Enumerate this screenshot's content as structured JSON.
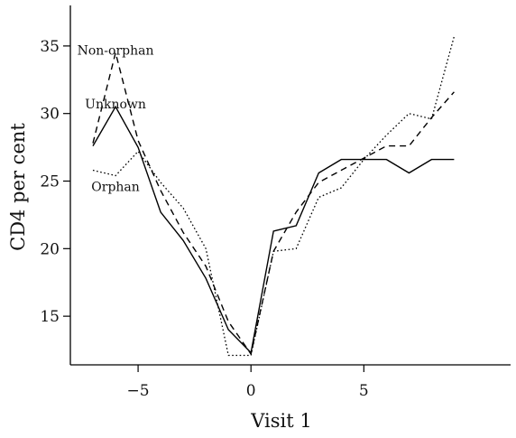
{
  "chart_data": {
    "type": "line",
    "title": "",
    "xlabel": "Visit 1",
    "ylabel": "CD4 per cent",
    "xlim": [
      -8,
      11.5
    ],
    "ylim": [
      11.4,
      38
    ],
    "x_ticks": [
      -5,
      0,
      5
    ],
    "x_tick_labels": [
      "−5",
      "0",
      "5"
    ],
    "y_ticks": [
      15,
      20,
      25,
      30,
      35
    ],
    "y_tick_labels": [
      "15",
      "20",
      "25",
      "30",
      "35"
    ],
    "grid": false,
    "legend": "none",
    "series": [
      {
        "name": "Non-orphan",
        "style": "dashed",
        "label_anchor": [
          -6,
          34.7
        ],
        "x": [
          -7,
          -6,
          -5,
          -4,
          -3,
          -2,
          -1,
          0,
          1,
          2,
          3,
          4,
          5,
          6,
          7,
          8,
          9
        ],
        "y": [
          27.8,
          34.5,
          28.0,
          24.3,
          21.2,
          18.7,
          14.6,
          12.2,
          19.8,
          22.7,
          24.9,
          25.8,
          26.7,
          27.6,
          27.6,
          29.7,
          31.6
        ]
      },
      {
        "name": "Unknown",
        "style": "solid",
        "label_anchor": [
          -6,
          30.7
        ],
        "x": [
          -7,
          -6,
          -5,
          -4,
          -3,
          -2,
          -1,
          0,
          1,
          2,
          3,
          4,
          5,
          6,
          7,
          8,
          9
        ],
        "y": [
          27.6,
          30.5,
          27.5,
          22.7,
          20.6,
          17.8,
          14.0,
          12.3,
          21.3,
          21.7,
          25.6,
          26.6,
          26.6,
          26.6,
          25.6,
          26.6,
          26.6
        ]
      },
      {
        "name": "Orphan",
        "style": "dotted",
        "label_anchor": [
          -6,
          24.6
        ],
        "x": [
          -7,
          -6,
          -5,
          -4,
          -3,
          -2,
          -1,
          0,
          1,
          2,
          3,
          4,
          5,
          6,
          7,
          8,
          9
        ],
        "y": [
          25.8,
          25.4,
          27.2,
          24.9,
          23.0,
          20.0,
          12.1,
          12.1,
          19.8,
          20.0,
          23.8,
          24.5,
          26.6,
          28.4,
          30.0,
          29.6,
          35.7
        ]
      }
    ]
  }
}
